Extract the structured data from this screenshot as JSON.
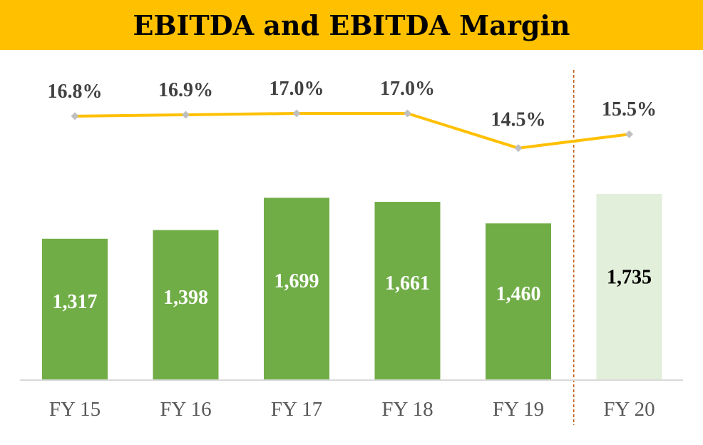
{
  "title": "EBITDA and EBITDA Margin",
  "colors": {
    "title_bg": "#FFC000",
    "bar_actual": "#70AD47",
    "bar_projected": "#E2EFDA",
    "line": "#FFC000",
    "marker": "#BFBFBF",
    "divider": "#C55A11"
  },
  "chart_data": {
    "type": "bar",
    "title": "EBITDA and EBITDA Margin",
    "categories": [
      "FY 15",
      "FY 16",
      "FY 17",
      "FY 18",
      "FY 19",
      "FY 20"
    ],
    "series": [
      {
        "name": "EBITDA",
        "type": "bar",
        "values": [
          1317,
          1398,
          1699,
          1661,
          1460,
          1735
        ],
        "labels": [
          "1,317",
          "1,398",
          "1,699",
          "1,661",
          "1,460",
          "1,735"
        ],
        "projected": [
          false,
          false,
          false,
          false,
          false,
          true
        ]
      },
      {
        "name": "EBITDA Margin",
        "type": "line",
        "values": [
          16.8,
          16.9,
          17.0,
          17.0,
          14.5,
          15.5
        ],
        "labels": [
          "16.8%",
          "16.9%",
          "17.0%",
          "17.0%",
          "14.5%",
          "15.5%"
        ]
      }
    ],
    "xlabel": "",
    "ylabel": "",
    "ylim": [
      0,
      1980
    ],
    "margin_ylim": [
      6.5,
      19.0
    ],
    "grid": false,
    "legend": "none",
    "divider_between": [
      "FY 19",
      "FY 20"
    ]
  }
}
